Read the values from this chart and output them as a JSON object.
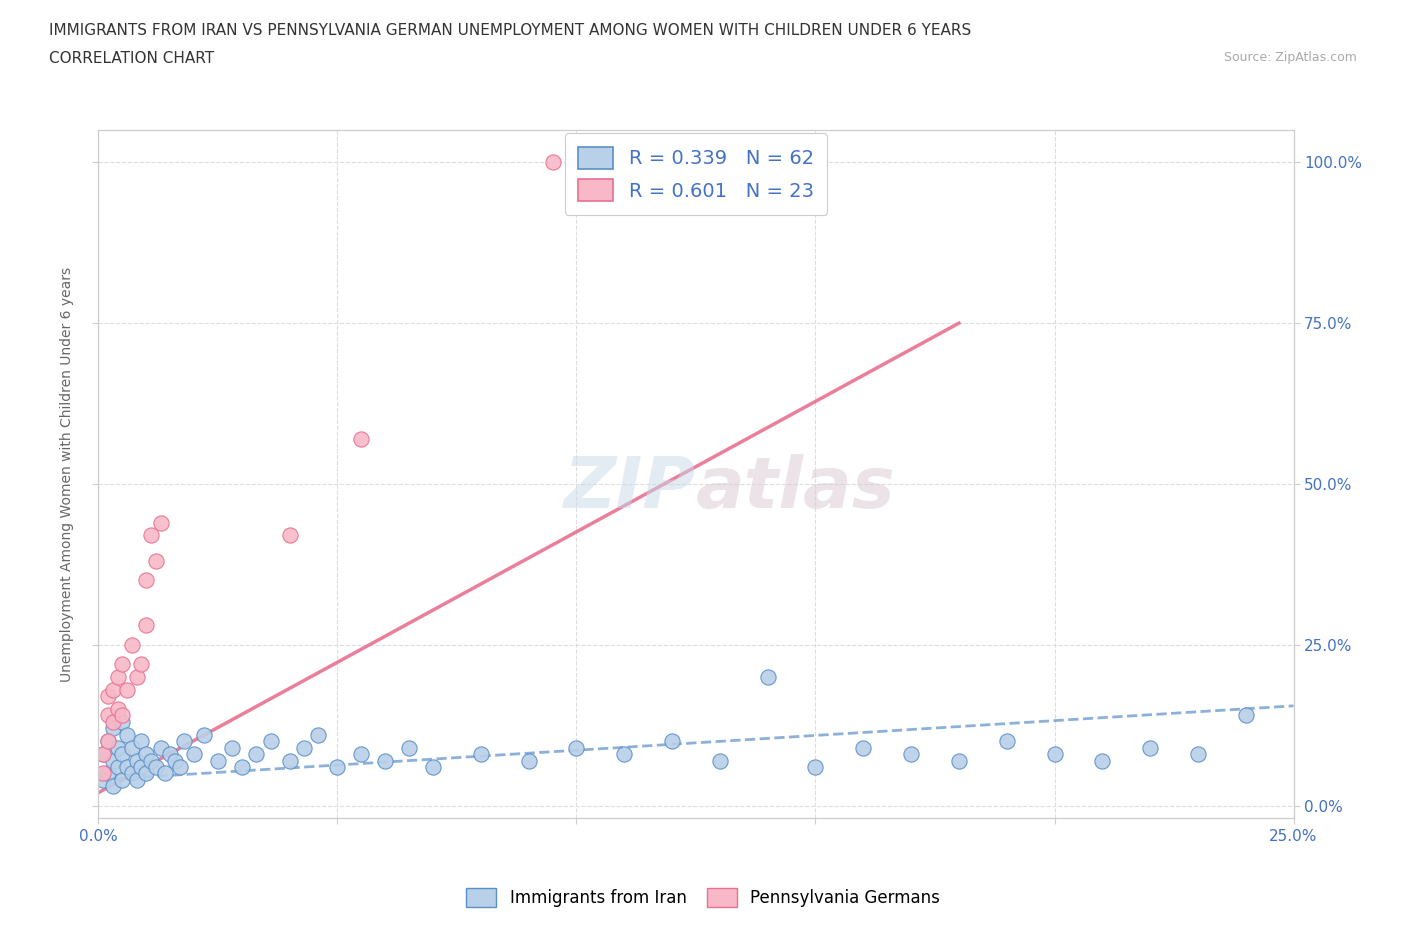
{
  "title_line1": "IMMIGRANTS FROM IRAN VS PENNSYLVANIA GERMAN UNEMPLOYMENT AMONG WOMEN WITH CHILDREN UNDER 6 YEARS",
  "title_line2": "CORRELATION CHART",
  "source_text": "Source: ZipAtlas.com",
  "xlim": [
    0.0,
    0.25
  ],
  "ylim": [
    -0.02,
    1.05
  ],
  "legend_r1": "R = 0.339   N = 62",
  "legend_r2": "R = 0.601   N = 23",
  "series1_color": "#b8d0e8",
  "series2_color": "#f8b8c8",
  "series1_edge_color": "#5b8fc8",
  "series2_edge_color": "#e87090",
  "trend1_color": "#5b8fc8",
  "trend2_color": "#e87090",
  "trend1_dashed": true,
  "trend2_dashed": false,
  "watermark": "ZIPatlas",
  "iran_x": [
    0.001,
    0.001,
    0.002,
    0.002,
    0.003,
    0.003,
    0.003,
    0.004,
    0.004,
    0.005,
    0.005,
    0.005,
    0.006,
    0.006,
    0.007,
    0.007,
    0.008,
    0.008,
    0.009,
    0.009,
    0.01,
    0.01,
    0.011,
    0.012,
    0.013,
    0.014,
    0.015,
    0.016,
    0.017,
    0.018,
    0.02,
    0.022,
    0.025,
    0.028,
    0.03,
    0.033,
    0.036,
    0.04,
    0.043,
    0.046,
    0.05,
    0.055,
    0.06,
    0.065,
    0.07,
    0.08,
    0.09,
    0.1,
    0.11,
    0.12,
    0.13,
    0.14,
    0.15,
    0.16,
    0.17,
    0.18,
    0.19,
    0.2,
    0.21,
    0.22,
    0.23,
    0.24
  ],
  "iran_y": [
    0.04,
    0.08,
    0.05,
    0.1,
    0.03,
    0.07,
    0.12,
    0.06,
    0.09,
    0.04,
    0.08,
    0.13,
    0.06,
    0.11,
    0.05,
    0.09,
    0.04,
    0.07,
    0.06,
    0.1,
    0.05,
    0.08,
    0.07,
    0.06,
    0.09,
    0.05,
    0.08,
    0.07,
    0.06,
    0.1,
    0.08,
    0.11,
    0.07,
    0.09,
    0.06,
    0.08,
    0.1,
    0.07,
    0.09,
    0.11,
    0.06,
    0.08,
    0.07,
    0.09,
    0.06,
    0.08,
    0.07,
    0.09,
    0.08,
    0.1,
    0.07,
    0.2,
    0.06,
    0.09,
    0.08,
    0.07,
    0.1,
    0.08,
    0.07,
    0.09,
    0.08,
    0.14
  ],
  "iran_trend_x": [
    0.0,
    0.25
  ],
  "iran_trend_y": [
    0.04,
    0.155
  ],
  "penn_x": [
    0.001,
    0.001,
    0.002,
    0.002,
    0.002,
    0.003,
    0.003,
    0.004,
    0.004,
    0.005,
    0.005,
    0.006,
    0.007,
    0.008,
    0.009,
    0.01,
    0.01,
    0.011,
    0.012,
    0.013,
    0.04,
    0.055,
    0.095
  ],
  "penn_y": [
    0.05,
    0.08,
    0.1,
    0.14,
    0.17,
    0.13,
    0.18,
    0.15,
    0.2,
    0.14,
    0.22,
    0.18,
    0.25,
    0.2,
    0.22,
    0.28,
    0.35,
    0.42,
    0.38,
    0.44,
    0.42,
    0.57,
    1.0
  ],
  "penn_trend_x": [
    0.0,
    0.18
  ],
  "penn_trend_y": [
    0.02,
    0.75
  ]
}
